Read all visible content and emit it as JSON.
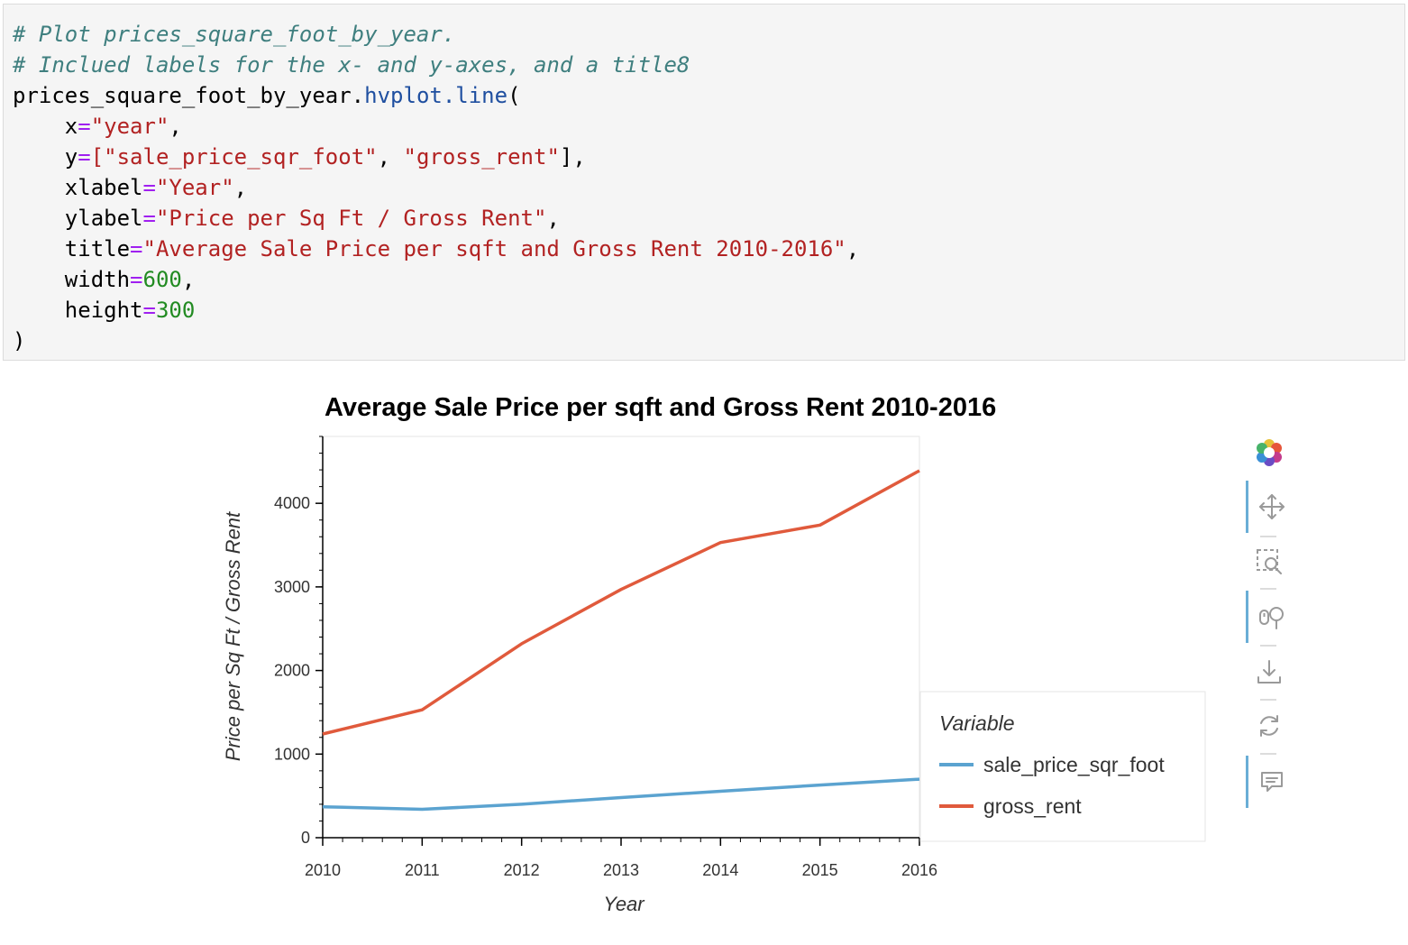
{
  "code": {
    "comment1": "# Plot prices_square_foot_by_year.",
    "comment2": "# Inclued labels for the x- and y-axes, and a title8",
    "obj": "prices_square_foot_by_year.",
    "method": "hvplot.line",
    "open_paren": "(",
    "indent": "    ",
    "p_x": "x",
    "v_x": "\"year\"",
    "p_y": "y",
    "v_y1": "[\"sale_price_sqr_foot\"",
    "v_y_sep": ", ",
    "v_y2": "\"gross_rent\"",
    "v_y_close": "]",
    "p_xlabel": "xlabel",
    "v_xlabel": "\"Year\"",
    "p_ylabel": "ylabel",
    "v_ylabel": "\"Price per Sq Ft / Gross Rent\"",
    "p_title": "title",
    "v_title": "\"Average Sale Price per sqft and Gross Rent 2010-2016\"",
    "p_width": "width",
    "v_width": "600",
    "p_height": "height",
    "v_height": "300",
    "eq": "=",
    "comma": ",",
    "close_paren": ")"
  },
  "chart_data": {
    "type": "line",
    "title": "Average Sale Price per sqft and Gross Rent 2010-2016",
    "xlabel": "Year",
    "ylabel": "Price per Sq Ft / Gross Rent",
    "x": [
      2010,
      2011,
      2012,
      2013,
      2014,
      2015,
      2016
    ],
    "xlim": [
      2010,
      2016
    ],
    "ylim": [
      0,
      4800
    ],
    "yticks": [
      0,
      1000,
      2000,
      3000,
      4000
    ],
    "series": [
      {
        "name": "sale_price_sqr_foot",
        "color": "#5ba3d0",
        "values": [
          370,
          340,
          400,
          480,
          555,
          630,
          700
        ]
      },
      {
        "name": "gross_rent",
        "color": "#e05a3c",
        "values": [
          1240,
          1530,
          2320,
          2970,
          3530,
          3740,
          4390
        ]
      }
    ],
    "legend": {
      "title": "Variable",
      "placement": "right"
    },
    "grid": false
  },
  "toolbar": {
    "items": [
      {
        "name": "bokeh-logo",
        "active": false
      },
      {
        "name": "pan-tool",
        "active": true
      },
      {
        "name": "box-zoom-tool",
        "active": false
      },
      {
        "name": "wheel-zoom-tool",
        "active": true
      },
      {
        "name": "save-tool",
        "active": false
      },
      {
        "name": "reset-tool",
        "active": false
      },
      {
        "name": "hover-tool",
        "active": true
      }
    ]
  }
}
